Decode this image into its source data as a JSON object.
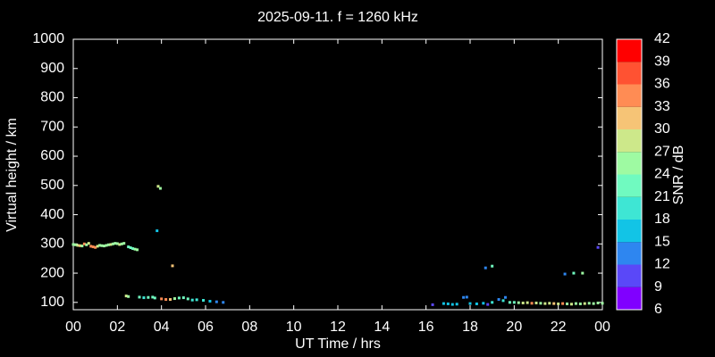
{
  "chart_data": {
    "type": "scatter",
    "title": "2025-09-11. f = 1260 kHz",
    "x_label": "UT Time / hrs",
    "y_label": "Virtual height / km",
    "xlim": [
      0,
      24
    ],
    "xticks": [
      {
        "value": 0,
        "label": "00"
      },
      {
        "value": 2,
        "label": "02"
      },
      {
        "value": 4,
        "label": "04"
      },
      {
        "value": 6,
        "label": "06"
      },
      {
        "value": 8,
        "label": "08"
      },
      10,
      12,
      14,
      16,
      18,
      20,
      22,
      {
        "value": 24,
        "label": "00"
      }
    ],
    "ylim": [
      75,
      1000
    ],
    "yticks": [
      100,
      200,
      300,
      400,
      500,
      600,
      700,
      800,
      900,
      1000
    ],
    "x": [
      0,
      0.1,
      0.2,
      0.3,
      0.4,
      0.5,
      0.6,
      0.7,
      0.8,
      0.9,
      1.0,
      1.1,
      1.2,
      1.3,
      1.4,
      1.5,
      1.6,
      1.7,
      1.8,
      1.9,
      2.0,
      2.1,
      2.2,
      2.3,
      2.5,
      2.6,
      2.7,
      2.8,
      2.9,
      3.8,
      3.85,
      3.95,
      4.5,
      2.4,
      2.5,
      3.0,
      3.2,
      3.4,
      3.6,
      3.7,
      4.0,
      4.2,
      4.4,
      4.6,
      4.8,
      5.0,
      5.2,
      5.4,
      5.6,
      5.9,
      6.2,
      6.5,
      6.8,
      16.3,
      16.8,
      17.0,
      17.2,
      17.4,
      17.7,
      17.85,
      18.0,
      18.3,
      18.6,
      18.7,
      18.8,
      19.0,
      19.0,
      19.3,
      19.5,
      19.6,
      19.8,
      20.0,
      20.2,
      20.4,
      20.6,
      20.8,
      21.0,
      21.2,
      21.4,
      21.6,
      21.8,
      22.0,
      22.2,
      22.4,
      22.6,
      22.8,
      23.0,
      23.2,
      23.4,
      23.6,
      23.8,
      24.0,
      22.3,
      22.7,
      23.1,
      23.8
    ],
    "values": [
      298,
      297,
      295,
      294,
      293,
      300,
      297,
      302,
      292,
      290,
      288,
      292,
      295,
      294,
      293,
      295,
      297,
      298,
      300,
      302,
      301,
      298,
      300,
      302,
      290,
      287,
      284,
      282,
      280,
      345,
      497,
      490,
      225,
      122,
      120,
      118,
      116,
      117,
      118,
      115,
      112,
      110,
      110,
      113,
      115,
      116,
      112,
      108,
      109,
      107,
      104,
      102,
      100,
      92,
      96,
      95,
      93,
      94,
      117,
      118,
      96,
      95,
      97,
      218,
      93,
      224,
      100,
      110,
      106,
      117,
      100,
      100,
      99,
      98,
      99,
      97,
      98,
      97,
      96,
      97,
      96,
      95,
      96,
      95,
      94,
      96,
      95,
      96,
      97,
      96,
      98,
      97,
      197,
      200,
      200,
      288
    ],
    "snr": [
      26,
      26,
      28,
      31,
      26,
      33,
      26,
      28,
      33,
      33,
      33,
      28,
      26,
      26,
      26,
      25,
      26,
      28,
      26,
      25,
      26,
      27,
      26,
      25,
      23,
      23,
      23,
      24,
      25,
      15,
      28,
      26,
      30,
      27,
      26,
      21,
      20,
      21,
      22,
      21,
      33,
      33,
      32,
      24,
      23,
      22,
      21,
      20,
      18,
      18,
      15,
      14,
      13,
      11,
      17,
      17,
      17,
      16,
      12,
      12,
      16,
      16,
      15,
      13,
      11,
      21,
      18,
      13,
      20,
      12,
      22,
      23,
      24,
      27,
      28,
      33,
      28,
      26,
      27,
      28,
      30,
      27,
      33,
      26,
      28,
      26,
      24,
      27,
      25,
      26,
      24,
      25,
      14,
      21,
      24,
      11
    ],
    "colorbar": {
      "label": "SNR / dB",
      "ticks": [
        6,
        9,
        12,
        15,
        18,
        21,
        24,
        27,
        30,
        33,
        36,
        39,
        42
      ],
      "colors": [
        "#8000ff",
        "#5a48f8",
        "#2e86f0",
        "#12c4e6",
        "#3ee6d4",
        "#70fac0",
        "#9efaa2",
        "#cde88a",
        "#f6c476",
        "#ff8c54",
        "#ff5232",
        "#ff0000"
      ]
    }
  }
}
